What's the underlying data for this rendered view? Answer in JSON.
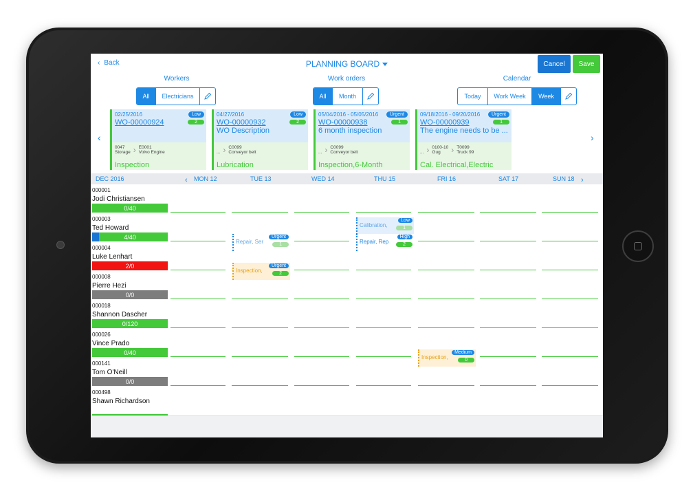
{
  "header": {
    "back_label": "Back",
    "title": "PLANNING BOARD",
    "cancel_label": "Cancel",
    "save_label": "Save"
  },
  "sections": {
    "workers": {
      "label": "Workers",
      "options": [
        "All",
        "Electricians"
      ],
      "selected": "All"
    },
    "work_orders": {
      "label": "Work orders",
      "options": [
        "All",
        "Month"
      ],
      "selected": "All"
    },
    "calendar": {
      "label": "Calendar",
      "options": [
        "Today",
        "Work Week",
        "Week"
      ],
      "selected": "Week"
    }
  },
  "cards": [
    {
      "date": "02/25/2016",
      "wo": "WO-00000924",
      "desc": "",
      "priority": "Low",
      "count": "2",
      "loc_code": "0047",
      "loc_name": "Storage",
      "asset_code": "E0001",
      "asset_name": "Volvo Engine",
      "category": "Inspection"
    },
    {
      "date": "04/27/2016",
      "wo": "WO-00000932",
      "desc": "WO Description",
      "priority": "Low",
      "count": "2",
      "loc_code": "...",
      "loc_name": "",
      "asset_code": "C0099",
      "asset_name": "Conveyor belt",
      "category": "Lubrication"
    },
    {
      "date": "05/04/2016 - 05/05/2016",
      "wo": "WO-00000938",
      "desc": "6 month inspection",
      "priority": "Urgent",
      "count": "1",
      "loc_code": "...",
      "loc_name": "",
      "asset_code": "C0099",
      "asset_name": "Conveyor belt",
      "category": "Inspection,6-Month"
    },
    {
      "date": "09/18/2016 - 09/20/2016",
      "wo": "WO-00000939",
      "desc": "The engine needs to be ...",
      "priority": "Urgent",
      "count": "1",
      "loc_code": "...",
      "loc_name": "",
      "asset_code": "0100-10",
      "asset_name": "Gug",
      "asset2_code": "T0099",
      "asset2_name": "Truck 99",
      "category": "Cal. Electrical,Electric"
    }
  ],
  "calendar": {
    "month": "DEC 2016",
    "days": [
      "MON 12",
      "TUE 13",
      "WED 14",
      "THU 15",
      "FRI 16",
      "SAT 17",
      "SUN 18"
    ]
  },
  "workers": [
    {
      "id": "000001",
      "name": "Jodi Christiansen",
      "load": "0/40",
      "color": "#43c93a"
    },
    {
      "id": "000003",
      "name": "Ted Howard",
      "load": "4/40",
      "color": "#43c93a"
    },
    {
      "id": "000004",
      "name": "Luke Lenhart",
      "load": "2/0",
      "color": "#f21313"
    },
    {
      "id": "000008",
      "name": "Pierre Hezi",
      "load": "0/0",
      "color": "#7d7d7d"
    },
    {
      "id": "000018",
      "name": "Shannon Dascher",
      "load": "0/120",
      "color": "#43c93a"
    },
    {
      "id": "000026",
      "name": "Vince Prado",
      "load": "0/40",
      "color": "#43c93a"
    },
    {
      "id": "000141",
      "name": "Tom O'Neill",
      "load": "0/0",
      "color": "#7d7d7d"
    },
    {
      "id": "000498",
      "name": "Shawn Richardson",
      "load": "",
      "color": "#43c93a"
    }
  ],
  "tasks": [
    {
      "text": "Calibration,",
      "priority": "Low",
      "count": "1",
      "priority_color": "#1e88e5",
      "text_color": "#64a8e8"
    },
    {
      "text": "Repair, Ser",
      "priority": "Urgent",
      "count": "1",
      "priority_color": "#1e88e5",
      "text_color": "#64a8e8"
    },
    {
      "text": "Repair, Rep",
      "priority": "High",
      "count": "2",
      "priority_color": "#1e88e5",
      "text_color": "#1e88e5"
    },
    {
      "text": "Inspection,",
      "priority": "Urgent",
      "count": "2",
      "priority_color": "#1e88e5",
      "text_color": "#e8a21a"
    },
    {
      "text": "Inspection,",
      "priority": "Medium",
      "count": "0",
      "priority_color": "#1e88e5",
      "text_color": "#e8a21a"
    }
  ]
}
